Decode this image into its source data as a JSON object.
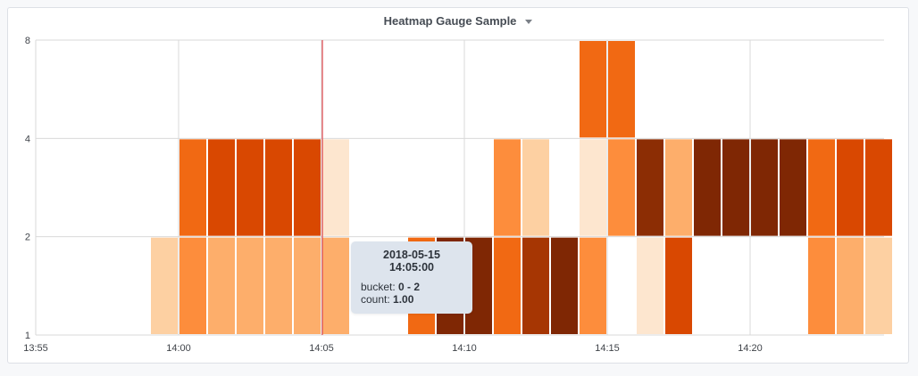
{
  "panel": {
    "title": "Heatmap Gauge Sample"
  },
  "chart_data": {
    "type": "heatmap",
    "title": "Heatmap Gauge Sample",
    "y_scale": "log2",
    "y_ticks": [
      "1",
      "2",
      "4",
      "8"
    ],
    "x_ticks": [
      "13:55",
      "14:00",
      "14:05",
      "14:10",
      "14:15",
      "14:20"
    ],
    "x_range": [
      "13:55",
      "14:24"
    ],
    "grid": true,
    "bucket_interval_minutes": 1,
    "cells": [
      {
        "time": "13:59",
        "bucket": "0-2",
        "count": 0.3
      },
      {
        "time": "14:00",
        "bucket": "0-2",
        "count": 1.6
      },
      {
        "time": "14:00",
        "bucket": "2-4",
        "count": 1.8
      },
      {
        "time": "14:01",
        "bucket": "0-2",
        "count": 1.0
      },
      {
        "time": "14:01",
        "bucket": "2-4",
        "count": 2.3
      },
      {
        "time": "14:02",
        "bucket": "0-2",
        "count": 1.0
      },
      {
        "time": "14:02",
        "bucket": "2-4",
        "count": 2.3
      },
      {
        "time": "14:03",
        "bucket": "0-2",
        "count": 1.0
      },
      {
        "time": "14:03",
        "bucket": "2-4",
        "count": 2.3
      },
      {
        "time": "14:04",
        "bucket": "0-2",
        "count": 1.0
      },
      {
        "time": "14:04",
        "bucket": "2-4",
        "count": 2.3
      },
      {
        "time": "14:05",
        "bucket": "0-2",
        "count": 1.0
      },
      {
        "time": "14:05",
        "bucket": "2-4",
        "count": 0.2
      },
      {
        "time": "14:08",
        "bucket": "0-2",
        "count": 2.0
      },
      {
        "time": "14:09",
        "bucket": "0-2",
        "count": 4.0
      },
      {
        "time": "14:10",
        "bucket": "0-2",
        "count": 4.0
      },
      {
        "time": "14:11",
        "bucket": "0-2",
        "count": 2.1
      },
      {
        "time": "14:11",
        "bucket": "2-4",
        "count": 1.3
      },
      {
        "time": "14:12",
        "bucket": "0-2",
        "count": 2.8
      },
      {
        "time": "14:12",
        "bucket": "2-4",
        "count": 0.5
      },
      {
        "time": "14:13",
        "bucket": "0-2",
        "count": 4.0
      },
      {
        "time": "14:14",
        "bucket": "0-2",
        "count": 1.3
      },
      {
        "time": "14:14",
        "bucket": "2-4",
        "count": 0.1
      },
      {
        "time": "14:14",
        "bucket": "4-8",
        "count": 1.8
      },
      {
        "time": "14:15",
        "bucket": "2-4",
        "count": 1.3
      },
      {
        "time": "14:15",
        "bucket": "4-8",
        "count": 1.8
      },
      {
        "time": "14:16",
        "bucket": "0-2",
        "count": 0.1
      },
      {
        "time": "14:16",
        "bucket": "2-4",
        "count": 3.3
      },
      {
        "time": "14:17",
        "bucket": "0-2",
        "count": 2.3
      },
      {
        "time": "14:17",
        "bucket": "2-4",
        "count": 1.0
      },
      {
        "time": "14:18",
        "bucket": "2-4",
        "count": 4.0
      },
      {
        "time": "14:19",
        "bucket": "2-4",
        "count": 4.0
      },
      {
        "time": "14:20",
        "bucket": "2-4",
        "count": 4.0
      },
      {
        "time": "14:21",
        "bucket": "2-4",
        "count": 4.0
      },
      {
        "time": "14:22",
        "bucket": "0-2",
        "count": 1.3
      },
      {
        "time": "14:22",
        "bucket": "2-4",
        "count": 2.1
      },
      {
        "time": "14:23",
        "bucket": "0-2",
        "count": 1.0
      },
      {
        "time": "14:23",
        "bucket": "2-4",
        "count": 2.3
      },
      {
        "time": "14:24",
        "bucket": "0-2",
        "count": 0.5
      },
      {
        "time": "14:24",
        "bucket": "2-4",
        "count": 2.6
      }
    ],
    "color_scale": [
      "#fde6cf",
      "#fdd0a2",
      "#fdae6b",
      "#fd8d3c",
      "#f16913",
      "#d94801",
      "#a63603",
      "#8c2d04",
      "#7f2704"
    ],
    "crosshair_time": "14:05"
  },
  "tooltip": {
    "time": "2018-05-15 14:05:00",
    "bucket_label": "bucket:",
    "bucket_value": "0 - 2",
    "count_label": "count:",
    "count_value": "1.00"
  }
}
